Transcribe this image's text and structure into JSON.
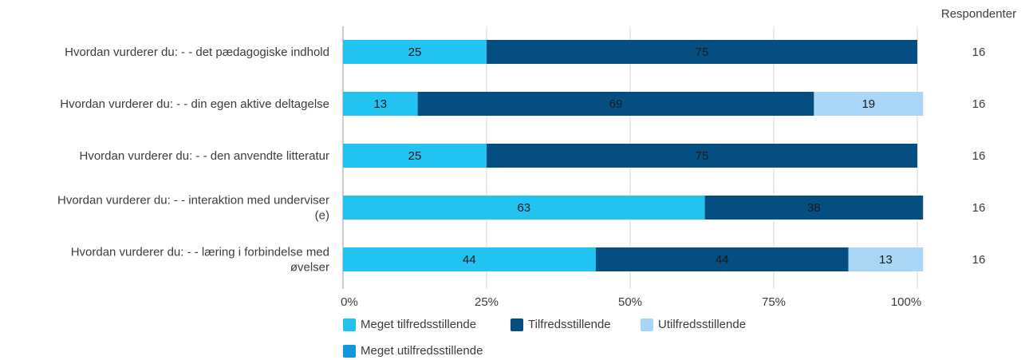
{
  "chart_data": {
    "type": "bar",
    "stacked": true,
    "orientation": "horizontal",
    "categories": [
      [
        "Hvordan vurderer du: - - det pædagogiske indhold"
      ],
      [
        "Hvordan vurderer du: - - din egen aktive deltagelse"
      ],
      [
        "Hvordan vurderer du: - - den anvendte litteratur"
      ],
      [
        "Hvordan vurderer du: - - interaktion med underviser",
        "(e)"
      ],
      [
        "Hvordan vurderer du: - - læring i forbindelse med",
        "øvelser"
      ]
    ],
    "series": [
      {
        "name": "Meget tilfredsstillende",
        "color": "#22c3f0",
        "label_color": "#1a1a1a",
        "values": [
          25,
          13,
          25,
          63,
          44
        ]
      },
      {
        "name": "Tilfredsstillende",
        "color": "#044e82",
        "label_color": "#1a1a1a",
        "values": [
          75,
          69,
          75,
          38,
          44
        ]
      },
      {
        "name": "Utilfredsstillende",
        "color": "#a9d5f6",
        "label_color": "#1a1a1a",
        "values": [
          0,
          19,
          0,
          0,
          13
        ]
      },
      {
        "name": "Meget utilfredsstillende",
        "color": "#1297d9",
        "label_color": "#1a1a1a",
        "values": [
          0,
          0,
          0,
          0,
          0
        ]
      }
    ],
    "x_ticks": [
      "0%",
      "25%",
      "50%",
      "75%",
      "100%"
    ],
    "xlim": [
      0,
      100
    ],
    "grid": true,
    "respondents_header": "Respondenter",
    "respondents": [
      "16",
      "16",
      "16",
      "16",
      "16"
    ],
    "legend_position": "bottom"
  }
}
